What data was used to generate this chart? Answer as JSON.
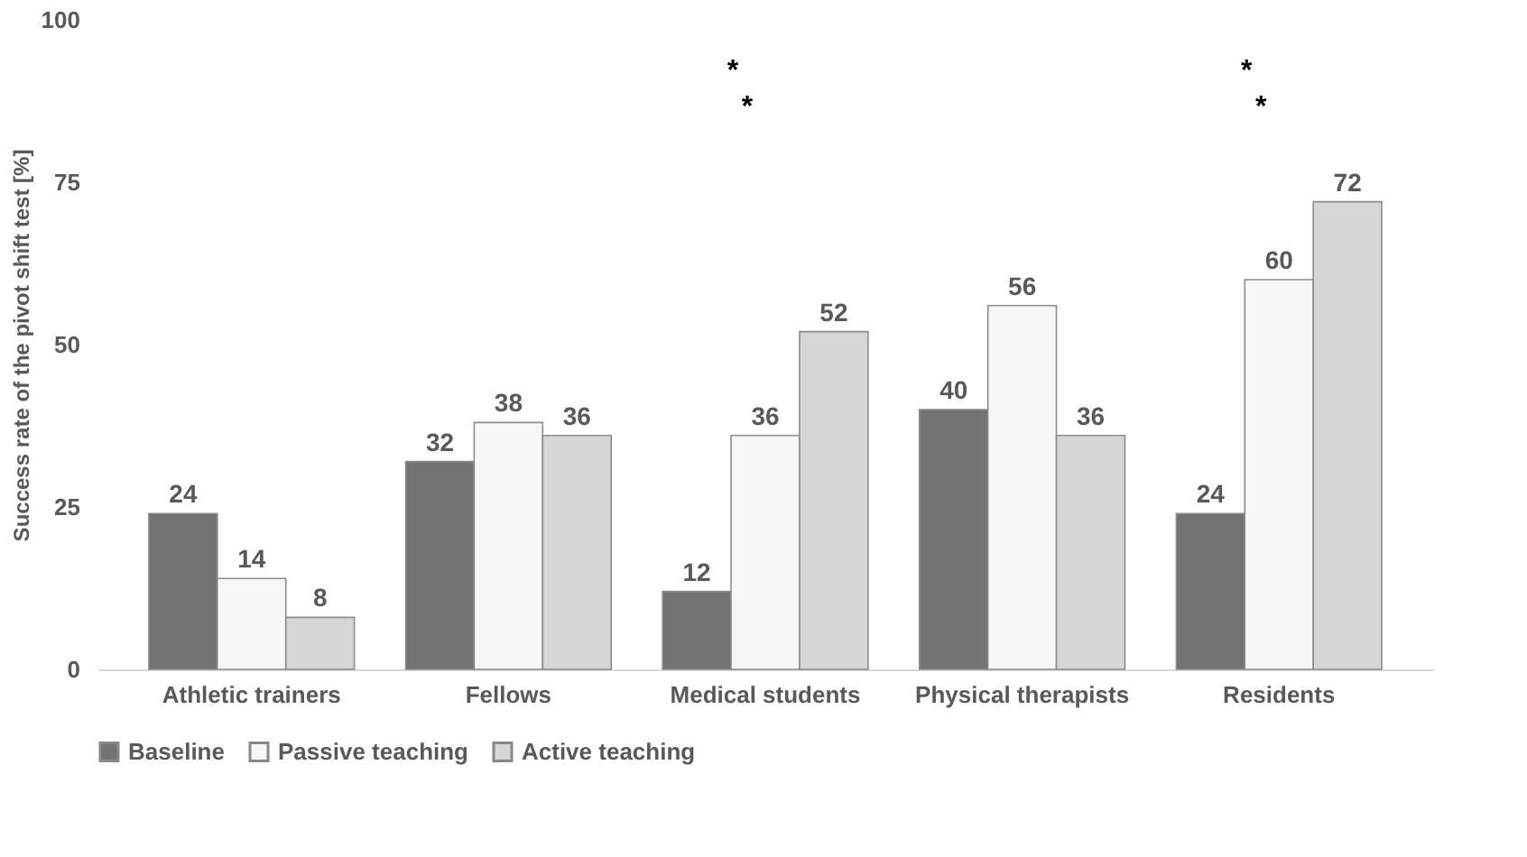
{
  "chart_data": {
    "type": "bar",
    "ylabel": "Success rate of the pivot shift test [%]",
    "categories": [
      "Athletic trainers",
      "Fellows",
      "Medical students",
      "Physical therapists",
      "Residents"
    ],
    "series": [
      {
        "name": "Baseline",
        "color": "#737373",
        "values": [
          24,
          32,
          12,
          40,
          24
        ]
      },
      {
        "name": "Passive teaching",
        "color": "#f7f7f7",
        "values": [
          14,
          38,
          36,
          56,
          60
        ]
      },
      {
        "name": "Active teaching",
        "color": "#d6d6d6",
        "values": [
          8,
          36,
          52,
          36,
          72
        ]
      }
    ],
    "ylim": [
      0,
      100
    ],
    "yticks": [
      0,
      25,
      50,
      75,
      100
    ],
    "grid": false,
    "legend": "bottom",
    "data_labels": true,
    "annotations": [
      "*",
      "*",
      "*",
      "*"
    ]
  }
}
